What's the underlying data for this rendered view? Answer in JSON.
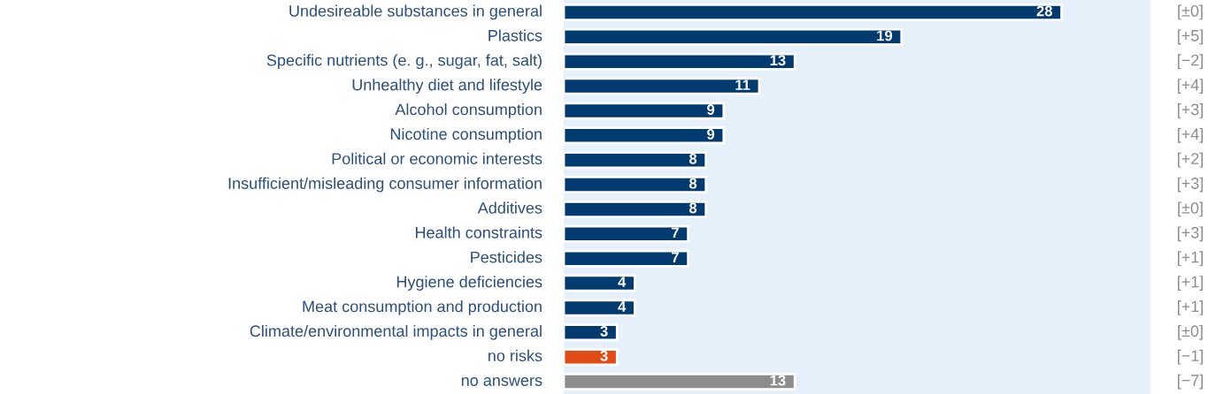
{
  "chart_data": {
    "type": "bar",
    "orientation": "horizontal",
    "categories": [
      "Undesireable substances in general",
      "Plastics",
      "Specific nutrients (e. g., sugar, fat, salt)",
      "Unhealthy diet and lifestyle",
      "Alcohol consumption",
      "Nicotine consumption",
      "Political or economic interests",
      "Insufficient/misleading consumer information",
      "Additives",
      "Health constraints",
      "Pesticides",
      "Hygiene deficiencies",
      "Meat consumption and production",
      "Climate/environmental impacts in general",
      "no risks",
      "no answers"
    ],
    "values": [
      28,
      19,
      13,
      11,
      9,
      9,
      8,
      8,
      8,
      7,
      7,
      4,
      4,
      3,
      3,
      13
    ],
    "colors": [
      "#003a6e",
      "#003a6e",
      "#003a6e",
      "#003a6e",
      "#003a6e",
      "#003a6e",
      "#003a6e",
      "#003a6e",
      "#003a6e",
      "#003a6e",
      "#003a6e",
      "#003a6e",
      "#003a6e",
      "#003a6e",
      "#e04c16",
      "#8c8c8c"
    ],
    "xlim": [
      0,
      33
    ],
    "data_labels": true,
    "annotations": [
      "[±0]",
      "[+5]",
      "[−2]",
      "[+4]",
      "[+3]",
      "[+4]",
      "[+2]",
      "[+3]",
      "[±0]",
      "[+3]",
      "[+1]",
      "[+1]",
      "[+1]",
      "[±0]",
      "[−1]",
      "[−7]"
    ]
  }
}
